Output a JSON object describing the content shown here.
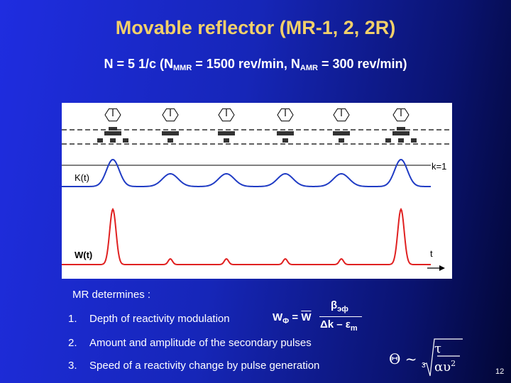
{
  "title": "Movable reflector (MR-1, 2, 2R)",
  "subtitle": {
    "prefix": "N = 5 1/c  (N",
    "sub1": "MMR",
    "mid": " = 1500 rev/min,  N",
    "sub2": "AMR",
    "suffix": " = 300 rev/min)"
  },
  "figure": {
    "label_k": "K(t)",
    "label_k1": "k=1",
    "label_w": "W(t)",
    "label_t": "t",
    "colors": {
      "k_curve": "#1f3bc4",
      "w_curve": "#e02020",
      "k1_line": "#000000",
      "grid": "#000000"
    }
  },
  "body": {
    "mr_determines": "MR determines :",
    "items": [
      {
        "num": "1.",
        "text": "Depth of reactivity modulation"
      },
      {
        "num": "2.",
        "text": "Amount and amplitude of the secondary pulses"
      },
      {
        "num": "3.",
        "text": "Speed of a reactivity change  by pulse generation"
      }
    ],
    "formula1": {
      "lhs": "W",
      "lhs_sub": "Φ",
      "eq": " = ",
      "w": "W",
      "num": "β",
      "num_sub": "эф",
      "den": "Δk – ε",
      "den_sub": "m"
    },
    "formula2": {
      "lhs": "Θ ~",
      "root_index": "3",
      "num": "τ",
      "den": "αυ",
      "den_sup": "2"
    }
  },
  "page_number": "12"
}
